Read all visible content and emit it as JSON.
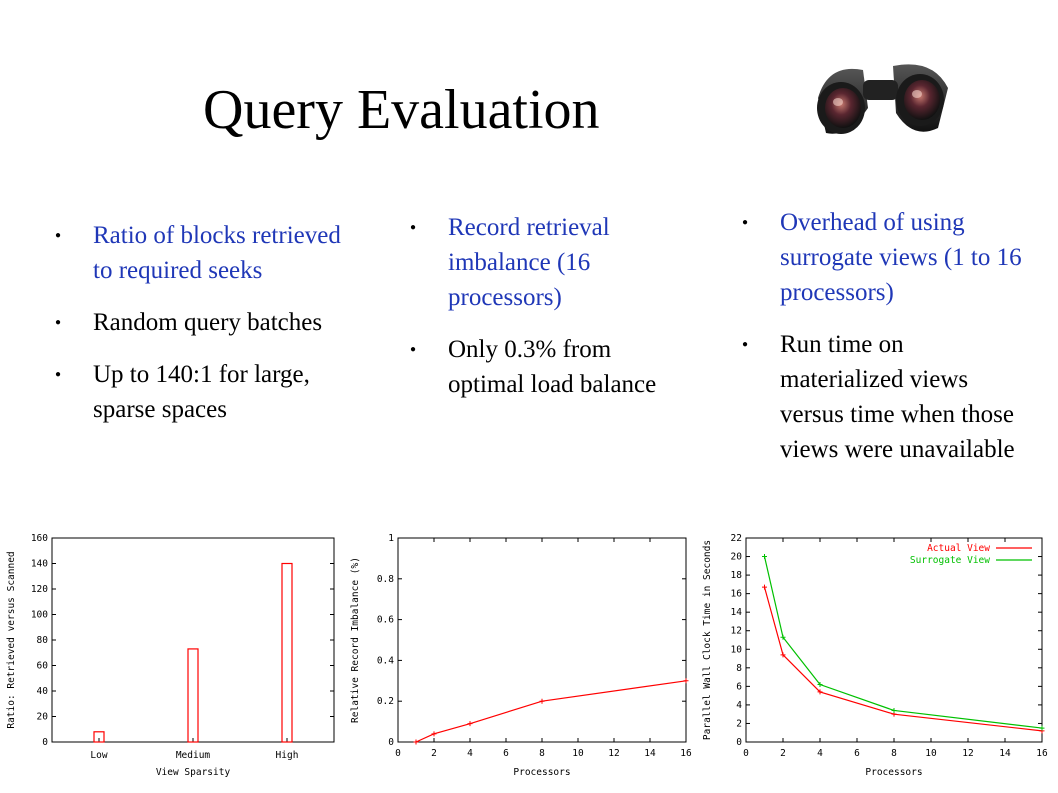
{
  "slide": {
    "title": "Query Evaluation",
    "image": "binoculars-icon",
    "columns": [
      {
        "bullets": [
          {
            "text": "Ratio of blocks retrieved to required seeks",
            "color": "#1f37b7"
          },
          {
            "text": "Random query batches",
            "color": "#000000"
          },
          {
            "text": "Up to 140:1 for large, sparse spaces",
            "color": "#000000"
          }
        ]
      },
      {
        "bullets": [
          {
            "text": "Record retrieval imbalance (16 processors)",
            "color": "#1f37b7"
          },
          {
            "text": "Only 0.3% from optimal load balance",
            "color": "#000000"
          }
        ]
      },
      {
        "bullets": [
          {
            "text": "Overhead of using surrogate views (1 to 16 processors)",
            "color": "#1f37b7"
          },
          {
            "text": "Run time on materialized views versus time when those views were unavailable",
            "color": "#000000"
          }
        ]
      }
    ]
  },
  "chart_data": [
    {
      "type": "bar",
      "categories": [
        "Low",
        "Medium",
        "High"
      ],
      "values": [
        8,
        73,
        140
      ],
      "xlabel": "View Sparsity",
      "ylabel": "Ratio: Retrieved versus Scanned",
      "ylim": [
        0,
        160
      ],
      "yticks": [
        0,
        20,
        40,
        60,
        80,
        100,
        120,
        140,
        160
      ],
      "color": "#ff0000"
    },
    {
      "type": "line",
      "x": [
        1,
        2,
        4,
        8,
        16
      ],
      "values": [
        0.0,
        0.04,
        0.09,
        0.2,
        0.3
      ],
      "xlabel": "Processors",
      "ylabel": "Relative Record Imbalance (%)",
      "xlim": [
        0,
        16
      ],
      "ylim": [
        0,
        1
      ],
      "xticks": [
        0,
        2,
        4,
        6,
        8,
        10,
        12,
        14,
        16
      ],
      "yticks": [
        0,
        0.2,
        0.4,
        0.6,
        0.8,
        1
      ],
      "color": "#ff0000"
    },
    {
      "type": "line",
      "x": [
        1,
        2,
        4,
        8,
        16
      ],
      "series": [
        {
          "name": "Actual View",
          "values": [
            16.7,
            9.4,
            5.4,
            3.0,
            1.2
          ],
          "color": "#ff0000"
        },
        {
          "name": "Surrogate View",
          "values": [
            20.0,
            11.3,
            6.2,
            3.4,
            1.5
          ],
          "color": "#00c000"
        }
      ],
      "xlabel": "Processors",
      "ylabel": "Parallel Wall Clock Time in Seconds",
      "xlim": [
        0,
        16
      ],
      "ylim": [
        0,
        22
      ],
      "xticks": [
        0,
        2,
        4,
        6,
        8,
        10,
        12,
        14,
        16
      ],
      "yticks": [
        0,
        2,
        4,
        6,
        8,
        10,
        12,
        14,
        16,
        18,
        20,
        22
      ],
      "legend": "top-right"
    }
  ]
}
